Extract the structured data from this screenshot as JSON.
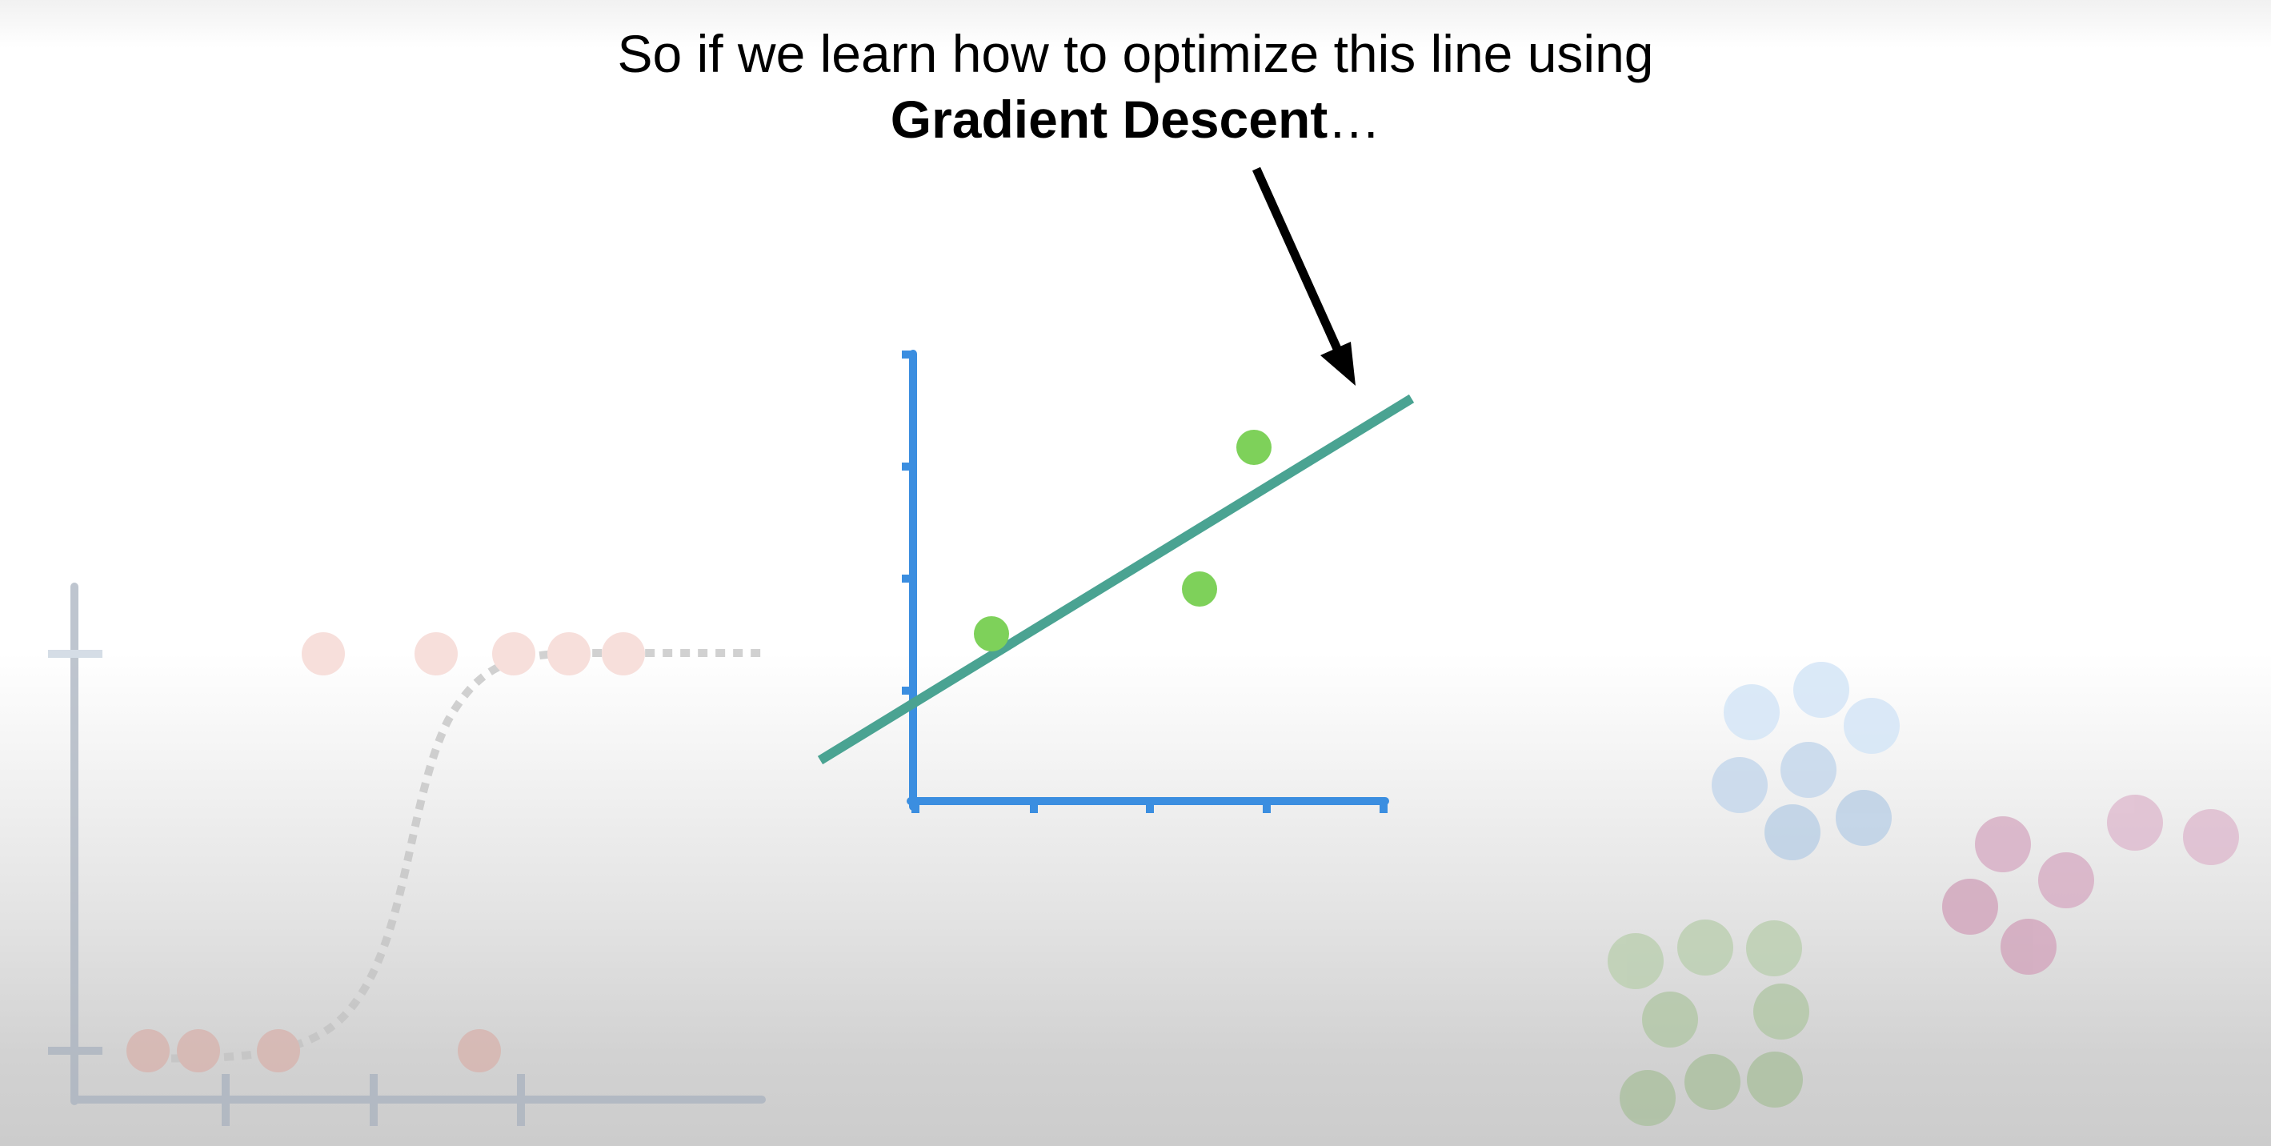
{
  "caption": {
    "line1": "So if we learn how to optimize this line using",
    "emphasis": "Gradient Descent",
    "suffix": "…"
  },
  "colors": {
    "axis_main": "#3b8ee0",
    "fit_line": "#4aa392",
    "data_point": "#7ed15a",
    "arrow": "#000000",
    "faded_axis": "#a9b2bf",
    "faded_curve": "#c2c2c2",
    "faded_points": "#e9aaa0",
    "cluster_blue": "#b9d3ee",
    "cluster_pink": "#d7a3bd",
    "cluster_green": "#b2c9a7"
  }
}
